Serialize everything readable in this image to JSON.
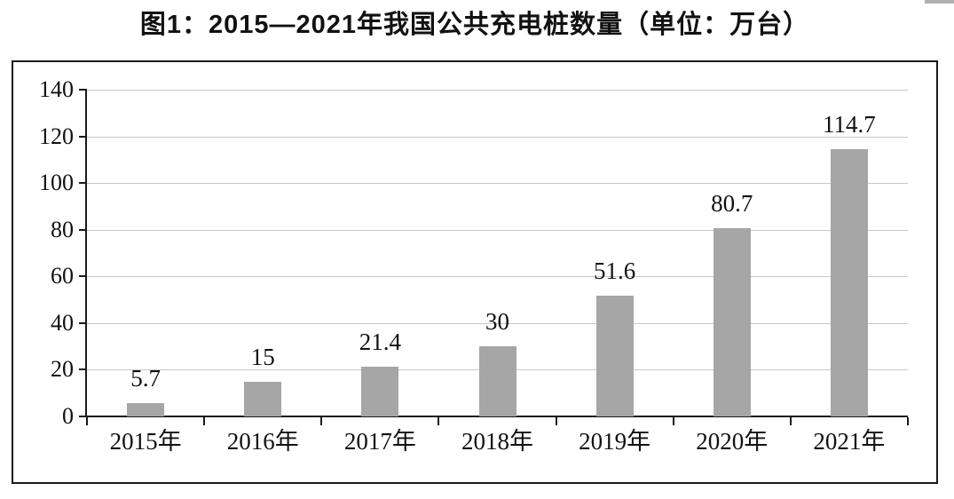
{
  "page": {
    "background": "#ffffff"
  },
  "artifacts": {
    "top_right_strip_color": "#b0b0b0"
  },
  "chart_data": {
    "type": "bar",
    "title": "图1：2015—2021年我国公共充电桩数量（单位：万台）",
    "unit": "万台",
    "categories": [
      "2015年",
      "2016年",
      "2017年",
      "2018年",
      "2019年",
      "2020年",
      "2021年"
    ],
    "values": [
      5.7,
      15,
      21.4,
      30,
      51.6,
      80.7,
      114.7
    ],
    "value_labels": [
      "5.7",
      "15",
      "21.4",
      "30",
      "51.6",
      "80.7",
      "114.7"
    ],
    "xlabel": "",
    "ylabel": "",
    "ylim": [
      0,
      140
    ],
    "yticks": [
      0,
      20,
      40,
      60,
      80,
      100,
      120,
      140
    ],
    "grid": true,
    "legend": "none",
    "bar_color": "#a6a6a6",
    "grid_color": "#c9c9c9",
    "axis_color": "#1a1a1a",
    "frame_color": "#1a1a1a"
  }
}
